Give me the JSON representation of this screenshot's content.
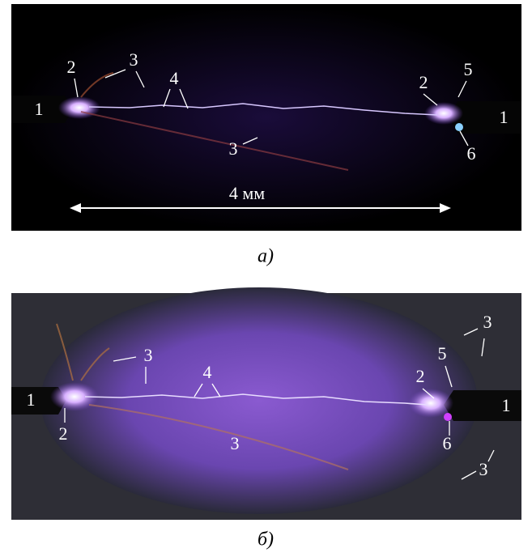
{
  "figure": {
    "panels": [
      {
        "labels": [
          "1",
          "2",
          "3",
          "4",
          "3",
          "2",
          "5",
          "1",
          "6"
        ],
        "scale": "4 мм",
        "caption": "а)"
      },
      {
        "labels": [
          "1",
          "2",
          "3",
          "4",
          "3",
          "2",
          "5",
          "3",
          "1",
          "6",
          "3"
        ],
        "caption": "б)"
      }
    ]
  }
}
